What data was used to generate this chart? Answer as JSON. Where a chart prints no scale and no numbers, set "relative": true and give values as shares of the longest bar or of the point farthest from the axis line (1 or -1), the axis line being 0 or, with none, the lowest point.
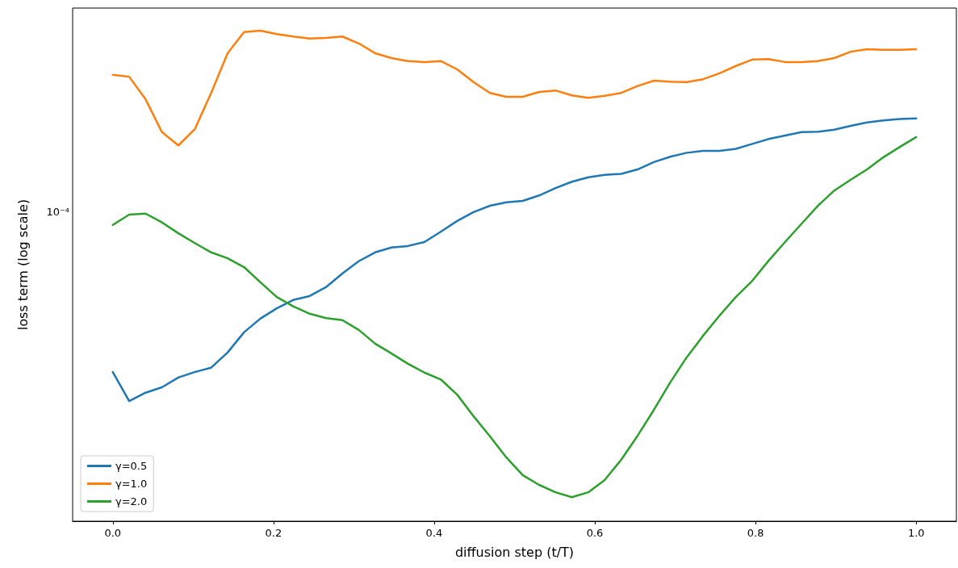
{
  "chart_data": {
    "type": "line",
    "relative": true,
    "xlabel": "diffusion step (t/T)",
    "ylabel": "loss term (log scale)",
    "annotations": [
      "10⁻⁴"
    ],
    "x": [
      0,
      0.0204,
      0.0408,
      0.0612,
      0.0816,
      0.102,
      0.1224,
      0.1429,
      0.1633,
      0.1837,
      0.2041,
      0.2245,
      0.2449,
      0.2653,
      0.2857,
      0.3061,
      0.3265,
      0.3469,
      0.3673,
      0.3878,
      0.4082,
      0.4286,
      0.449,
      0.4694,
      0.4898,
      0.5102,
      0.5306,
      0.551,
      0.5714,
      0.5918,
      0.6122,
      0.6327,
      0.6531,
      0.6735,
      0.6939,
      0.7143,
      0.7347,
      0.7551,
      0.7755,
      0.7959,
      0.8163,
      0.8367,
      0.8571,
      0.8776,
      0.898,
      0.9184,
      0.9388,
      0.9592,
      0.9796,
      1
    ],
    "series": [
      {
        "name": "γ=0.5",
        "color": "#1f77b4",
        "values": [
          0.304,
          0.245,
          0.262,
          0.273,
          0.293,
          0.304,
          0.313,
          0.344,
          0.385,
          0.413,
          0.434,
          0.451,
          0.459,
          0.477,
          0.505,
          0.53,
          0.548,
          0.558,
          0.561,
          0.569,
          0.59,
          0.612,
          0.63,
          0.643,
          0.65,
          0.653,
          0.664,
          0.679,
          0.692,
          0.701,
          0.706,
          0.708,
          0.717,
          0.732,
          0.743,
          0.751,
          0.755,
          0.755,
          0.759,
          0.769,
          0.779,
          0.786,
          0.793,
          0.794,
          0.798,
          0.806,
          0.813,
          0.817,
          0.82,
          0.821
        ]
      },
      {
        "name": "γ=1.0",
        "color": "#ff7f0e",
        "values": [
          0.91,
          0.906,
          0.86,
          0.793,
          0.766,
          0.799,
          0.873,
          0.954,
          0.997,
          1,
          0.993,
          0.988,
          0.984,
          0.985,
          0.988,
          0.974,
          0.954,
          0.944,
          0.938,
          0.936,
          0.938,
          0.921,
          0.895,
          0.873,
          0.865,
          0.865,
          0.875,
          0.878,
          0.868,
          0.863,
          0.867,
          0.873,
          0.887,
          0.898,
          0.896,
          0.895,
          0.901,
          0.913,
          0.928,
          0.941,
          0.942,
          0.936,
          0.936,
          0.938,
          0.944,
          0.957,
          0.962,
          0.961,
          0.961,
          0.962
        ]
      },
      {
        "name": "γ=2.0",
        "color": "#2ca02c",
        "values": [
          0.604,
          0.625,
          0.627,
          0.609,
          0.587,
          0.567,
          0.548,
          0.536,
          0.518,
          0.487,
          0.457,
          0.438,
          0.423,
          0.414,
          0.41,
          0.39,
          0.362,
          0.342,
          0.321,
          0.303,
          0.289,
          0.258,
          0.214,
          0.173,
          0.13,
          0.094,
          0.074,
          0.059,
          0.049,
          0.059,
          0.084,
          0.125,
          0.174,
          0.227,
          0.283,
          0.334,
          0.378,
          0.419,
          0.457,
          0.49,
          0.531,
          0.569,
          0.606,
          0.643,
          0.674,
          0.696,
          0.717,
          0.742,
          0.763,
          0.783
        ]
      }
    ],
    "xlim": [
      -0.05,
      1.05
    ],
    "xticks": [
      {
        "value": 0,
        "label": "0.0"
      },
      {
        "value": 0.2,
        "label": "0.2"
      },
      {
        "value": 0.4,
        "label": "0.4"
      },
      {
        "value": 0.6,
        "label": "0.6"
      },
      {
        "value": 0.8,
        "label": "0.8"
      },
      {
        "value": 1,
        "label": "1.0"
      }
    ],
    "grid": false,
    "legend": "bottom left",
    "marker": "none",
    "line_style": "solid"
  }
}
